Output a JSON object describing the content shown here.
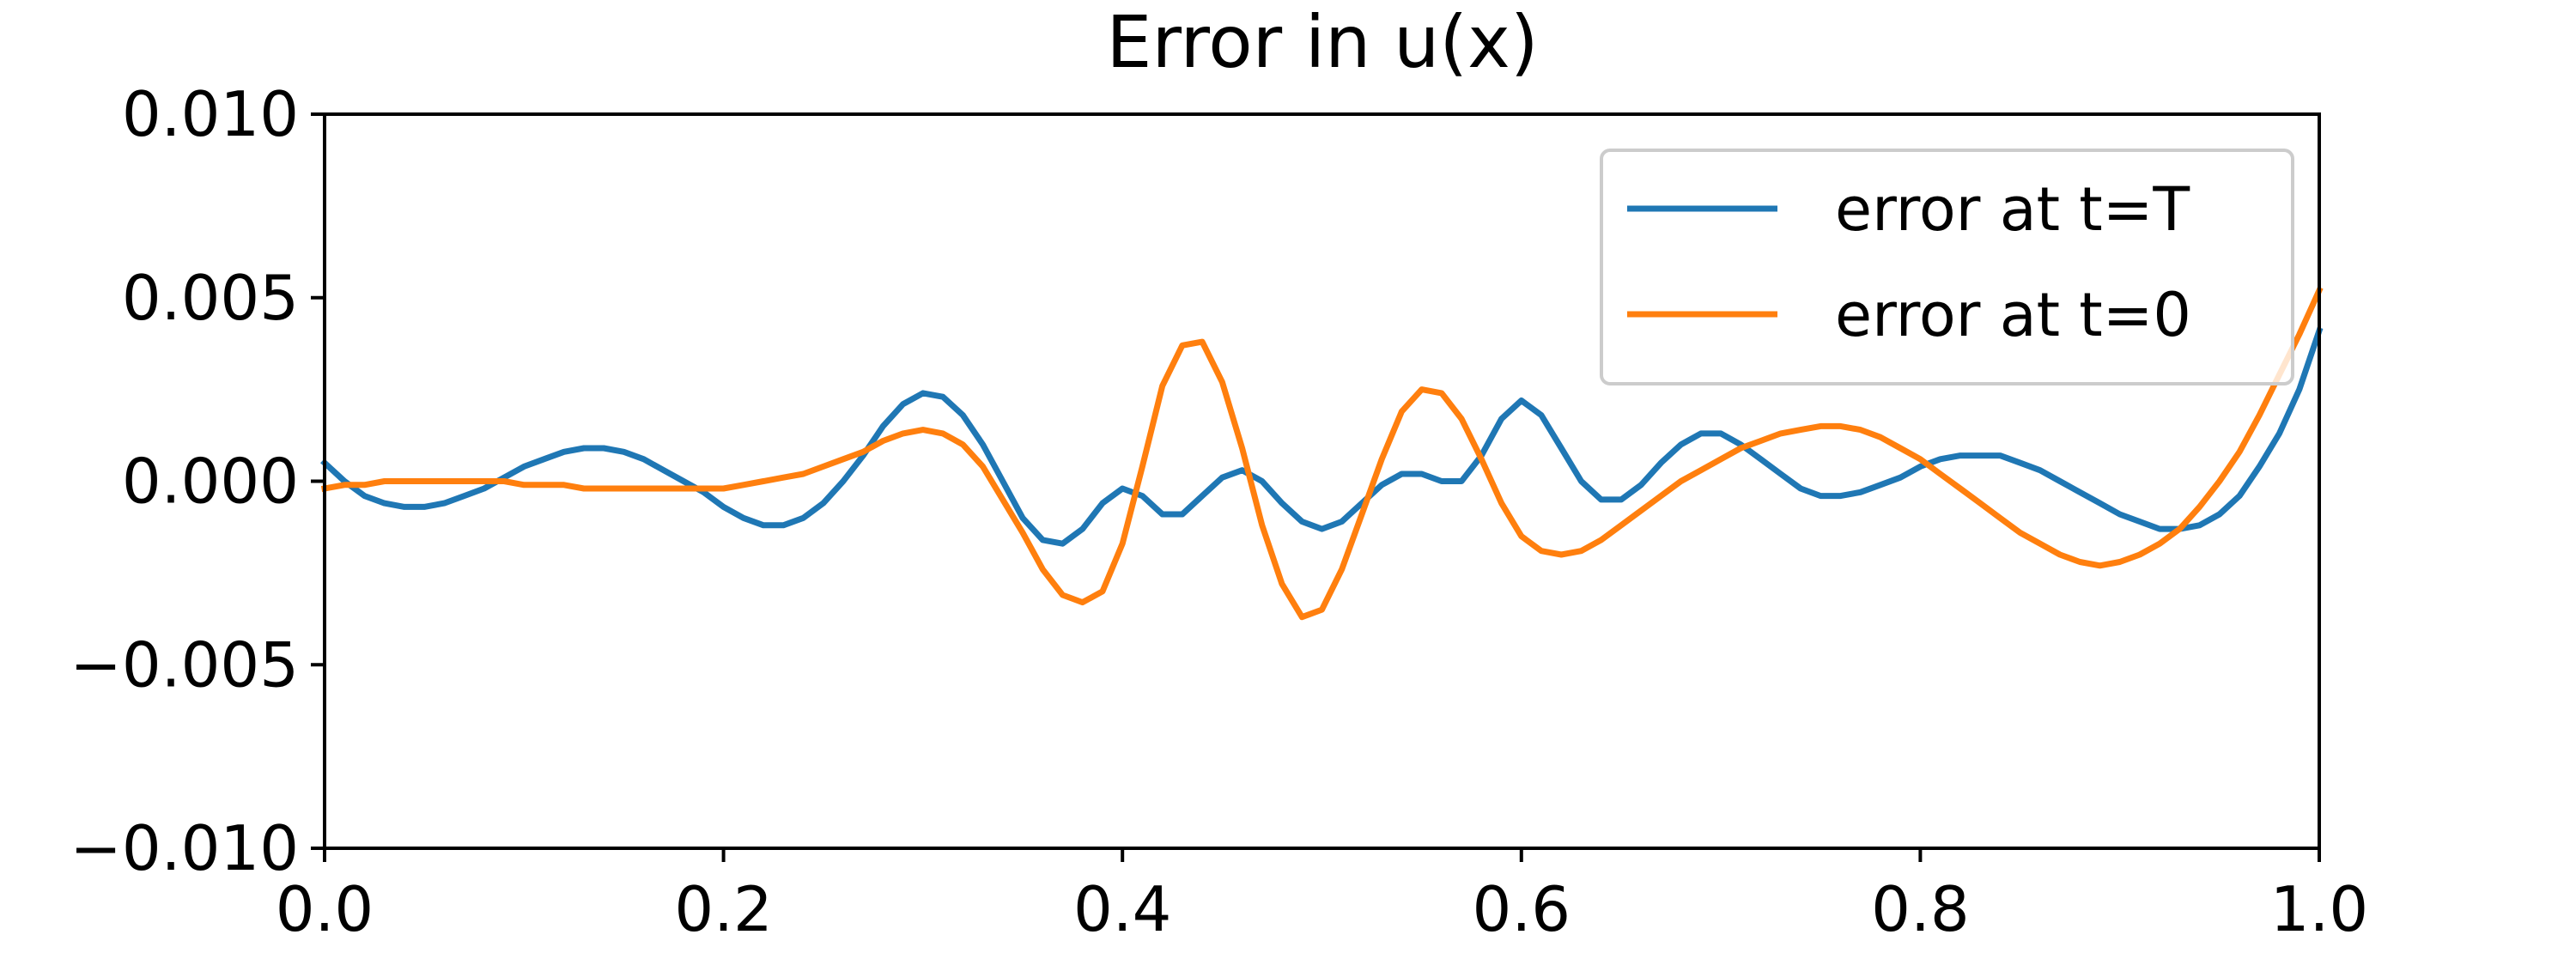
{
  "chart_data": {
    "type": "line",
    "title": "Error in u(x)",
    "xlabel": "",
    "ylabel": "",
    "xlim": [
      0.0,
      1.0
    ],
    "ylim": [
      -0.01,
      0.01
    ],
    "x_ticks": [
      "0.0",
      "0.2",
      "0.4",
      "0.6",
      "0.8",
      "1.0"
    ],
    "y_ticks": [
      "0.010",
      "0.005",
      "0.000",
      "−0.005",
      "−0.010"
    ],
    "grid": false,
    "legend_position": "upper-right",
    "series": [
      {
        "name": "error at t=T",
        "color": "#1f77b4",
        "x": [
          0.0,
          0.01,
          0.02,
          0.03,
          0.04,
          0.05,
          0.06,
          0.07,
          0.08,
          0.09,
          0.1,
          0.11,
          0.12,
          0.13,
          0.14,
          0.15,
          0.16,
          0.17,
          0.18,
          0.19,
          0.2,
          0.21,
          0.22,
          0.23,
          0.24,
          0.25,
          0.26,
          0.27,
          0.28,
          0.29,
          0.3,
          0.31,
          0.32,
          0.33,
          0.34,
          0.35,
          0.36,
          0.37,
          0.38,
          0.39,
          0.4,
          0.41,
          0.42,
          0.43,
          0.44,
          0.45,
          0.46,
          0.47,
          0.48,
          0.49,
          0.5,
          0.51,
          0.52,
          0.53,
          0.54,
          0.55,
          0.56,
          0.57,
          0.58,
          0.59,
          0.6,
          0.61,
          0.62,
          0.63,
          0.64,
          0.65,
          0.66,
          0.67,
          0.68,
          0.69,
          0.7,
          0.71,
          0.72,
          0.73,
          0.74,
          0.75,
          0.76,
          0.77,
          0.78,
          0.79,
          0.8,
          0.81,
          0.82,
          0.83,
          0.84,
          0.85,
          0.86,
          0.87,
          0.88,
          0.89,
          0.9,
          0.91,
          0.92,
          0.93,
          0.94,
          0.95,
          0.96,
          0.97,
          0.98,
          0.99,
          1.0
        ],
        "y": [
          0.0005,
          0.0,
          -0.0004,
          -0.0006,
          -0.0007,
          -0.0007,
          -0.0006,
          -0.0004,
          -0.0002,
          0.0001,
          0.0004,
          0.0006,
          0.0008,
          0.0009,
          0.0009,
          0.0008,
          0.0006,
          0.0003,
          0.0,
          -0.0003,
          -0.0007,
          -0.001,
          -0.0012,
          -0.0012,
          -0.001,
          -0.0006,
          0.0,
          0.0007,
          0.0015,
          0.0021,
          0.0024,
          0.0023,
          0.0018,
          0.001,
          0.0,
          -0.001,
          -0.0016,
          -0.0017,
          -0.0013,
          -0.0006,
          -0.0002,
          -0.0004,
          -0.0009,
          -0.0009,
          -0.0004,
          0.0001,
          0.0003,
          0.0,
          -0.0006,
          -0.0011,
          -0.0013,
          -0.0011,
          -0.0006,
          -0.0001,
          0.0002,
          0.0002,
          0.0,
          0.0,
          0.0007,
          0.0017,
          0.0022,
          0.0018,
          0.0009,
          0.0,
          -0.0005,
          -0.0005,
          -0.0001,
          0.0005,
          0.001,
          0.0013,
          0.0013,
          0.001,
          0.0006,
          0.0002,
          -0.0002,
          -0.0004,
          -0.0004,
          -0.0003,
          -0.0001,
          0.0001,
          0.0004,
          0.0006,
          0.0007,
          0.0007,
          0.0007,
          0.0005,
          0.0003,
          0.0,
          -0.0003,
          -0.0006,
          -0.0009,
          -0.0011,
          -0.0013,
          -0.0013,
          -0.0012,
          -0.0009,
          -0.0004,
          0.0004,
          0.0013,
          0.0025,
          0.0041
        ]
      },
      {
        "name": "error at t=0",
        "color": "#ff7f0e",
        "x": [
          0.0,
          0.01,
          0.02,
          0.03,
          0.04,
          0.05,
          0.06,
          0.07,
          0.08,
          0.09,
          0.1,
          0.11,
          0.12,
          0.13,
          0.14,
          0.15,
          0.16,
          0.17,
          0.18,
          0.19,
          0.2,
          0.21,
          0.22,
          0.23,
          0.24,
          0.25,
          0.26,
          0.27,
          0.28,
          0.29,
          0.3,
          0.31,
          0.32,
          0.33,
          0.34,
          0.35,
          0.36,
          0.37,
          0.38,
          0.39,
          0.4,
          0.41,
          0.42,
          0.43,
          0.44,
          0.45,
          0.46,
          0.47,
          0.48,
          0.49,
          0.5,
          0.51,
          0.52,
          0.53,
          0.54,
          0.55,
          0.56,
          0.57,
          0.58,
          0.59,
          0.6,
          0.61,
          0.62,
          0.63,
          0.64,
          0.65,
          0.66,
          0.67,
          0.68,
          0.69,
          0.7,
          0.71,
          0.72,
          0.73,
          0.74,
          0.75,
          0.76,
          0.77,
          0.78,
          0.79,
          0.8,
          0.81,
          0.82,
          0.83,
          0.84,
          0.85,
          0.86,
          0.87,
          0.88,
          0.89,
          0.9,
          0.91,
          0.92,
          0.93,
          0.94,
          0.95,
          0.96,
          0.97,
          0.98,
          0.99,
          1.0
        ],
        "y": [
          -0.0002,
          -0.0001,
          -0.0001,
          0.0,
          0.0,
          0.0,
          0.0,
          0.0,
          0.0,
          0.0,
          -0.0001,
          -0.0001,
          -0.0001,
          -0.0002,
          -0.0002,
          -0.0002,
          -0.0002,
          -0.0002,
          -0.0002,
          -0.0002,
          -0.0002,
          -0.0001,
          0.0,
          0.0001,
          0.0002,
          0.0004,
          0.0006,
          0.0008,
          0.0011,
          0.0013,
          0.0014,
          0.0013,
          0.001,
          0.0004,
          -0.0005,
          -0.0014,
          -0.0024,
          -0.0031,
          -0.0033,
          -0.003,
          -0.0017,
          0.0004,
          0.0026,
          0.0037,
          0.0038,
          0.0027,
          0.0009,
          -0.0012,
          -0.0028,
          -0.0037,
          -0.0035,
          -0.0024,
          -0.0009,
          0.0006,
          0.0019,
          0.0025,
          0.0024,
          0.0017,
          0.0006,
          -0.0006,
          -0.0015,
          -0.0019,
          -0.002,
          -0.0019,
          -0.0016,
          -0.0012,
          -0.0008,
          -0.0004,
          0.0,
          0.0003,
          0.0006,
          0.0009,
          0.0011,
          0.0013,
          0.0014,
          0.0015,
          0.0015,
          0.0014,
          0.0012,
          0.0009,
          0.0006,
          0.0002,
          -0.0002,
          -0.0006,
          -0.001,
          -0.0014,
          -0.0017,
          -0.002,
          -0.0022,
          -0.0023,
          -0.0022,
          -0.002,
          -0.0017,
          -0.0013,
          -0.0007,
          0.0,
          0.0008,
          0.0018,
          0.0029,
          0.004,
          0.0052
        ]
      }
    ]
  }
}
